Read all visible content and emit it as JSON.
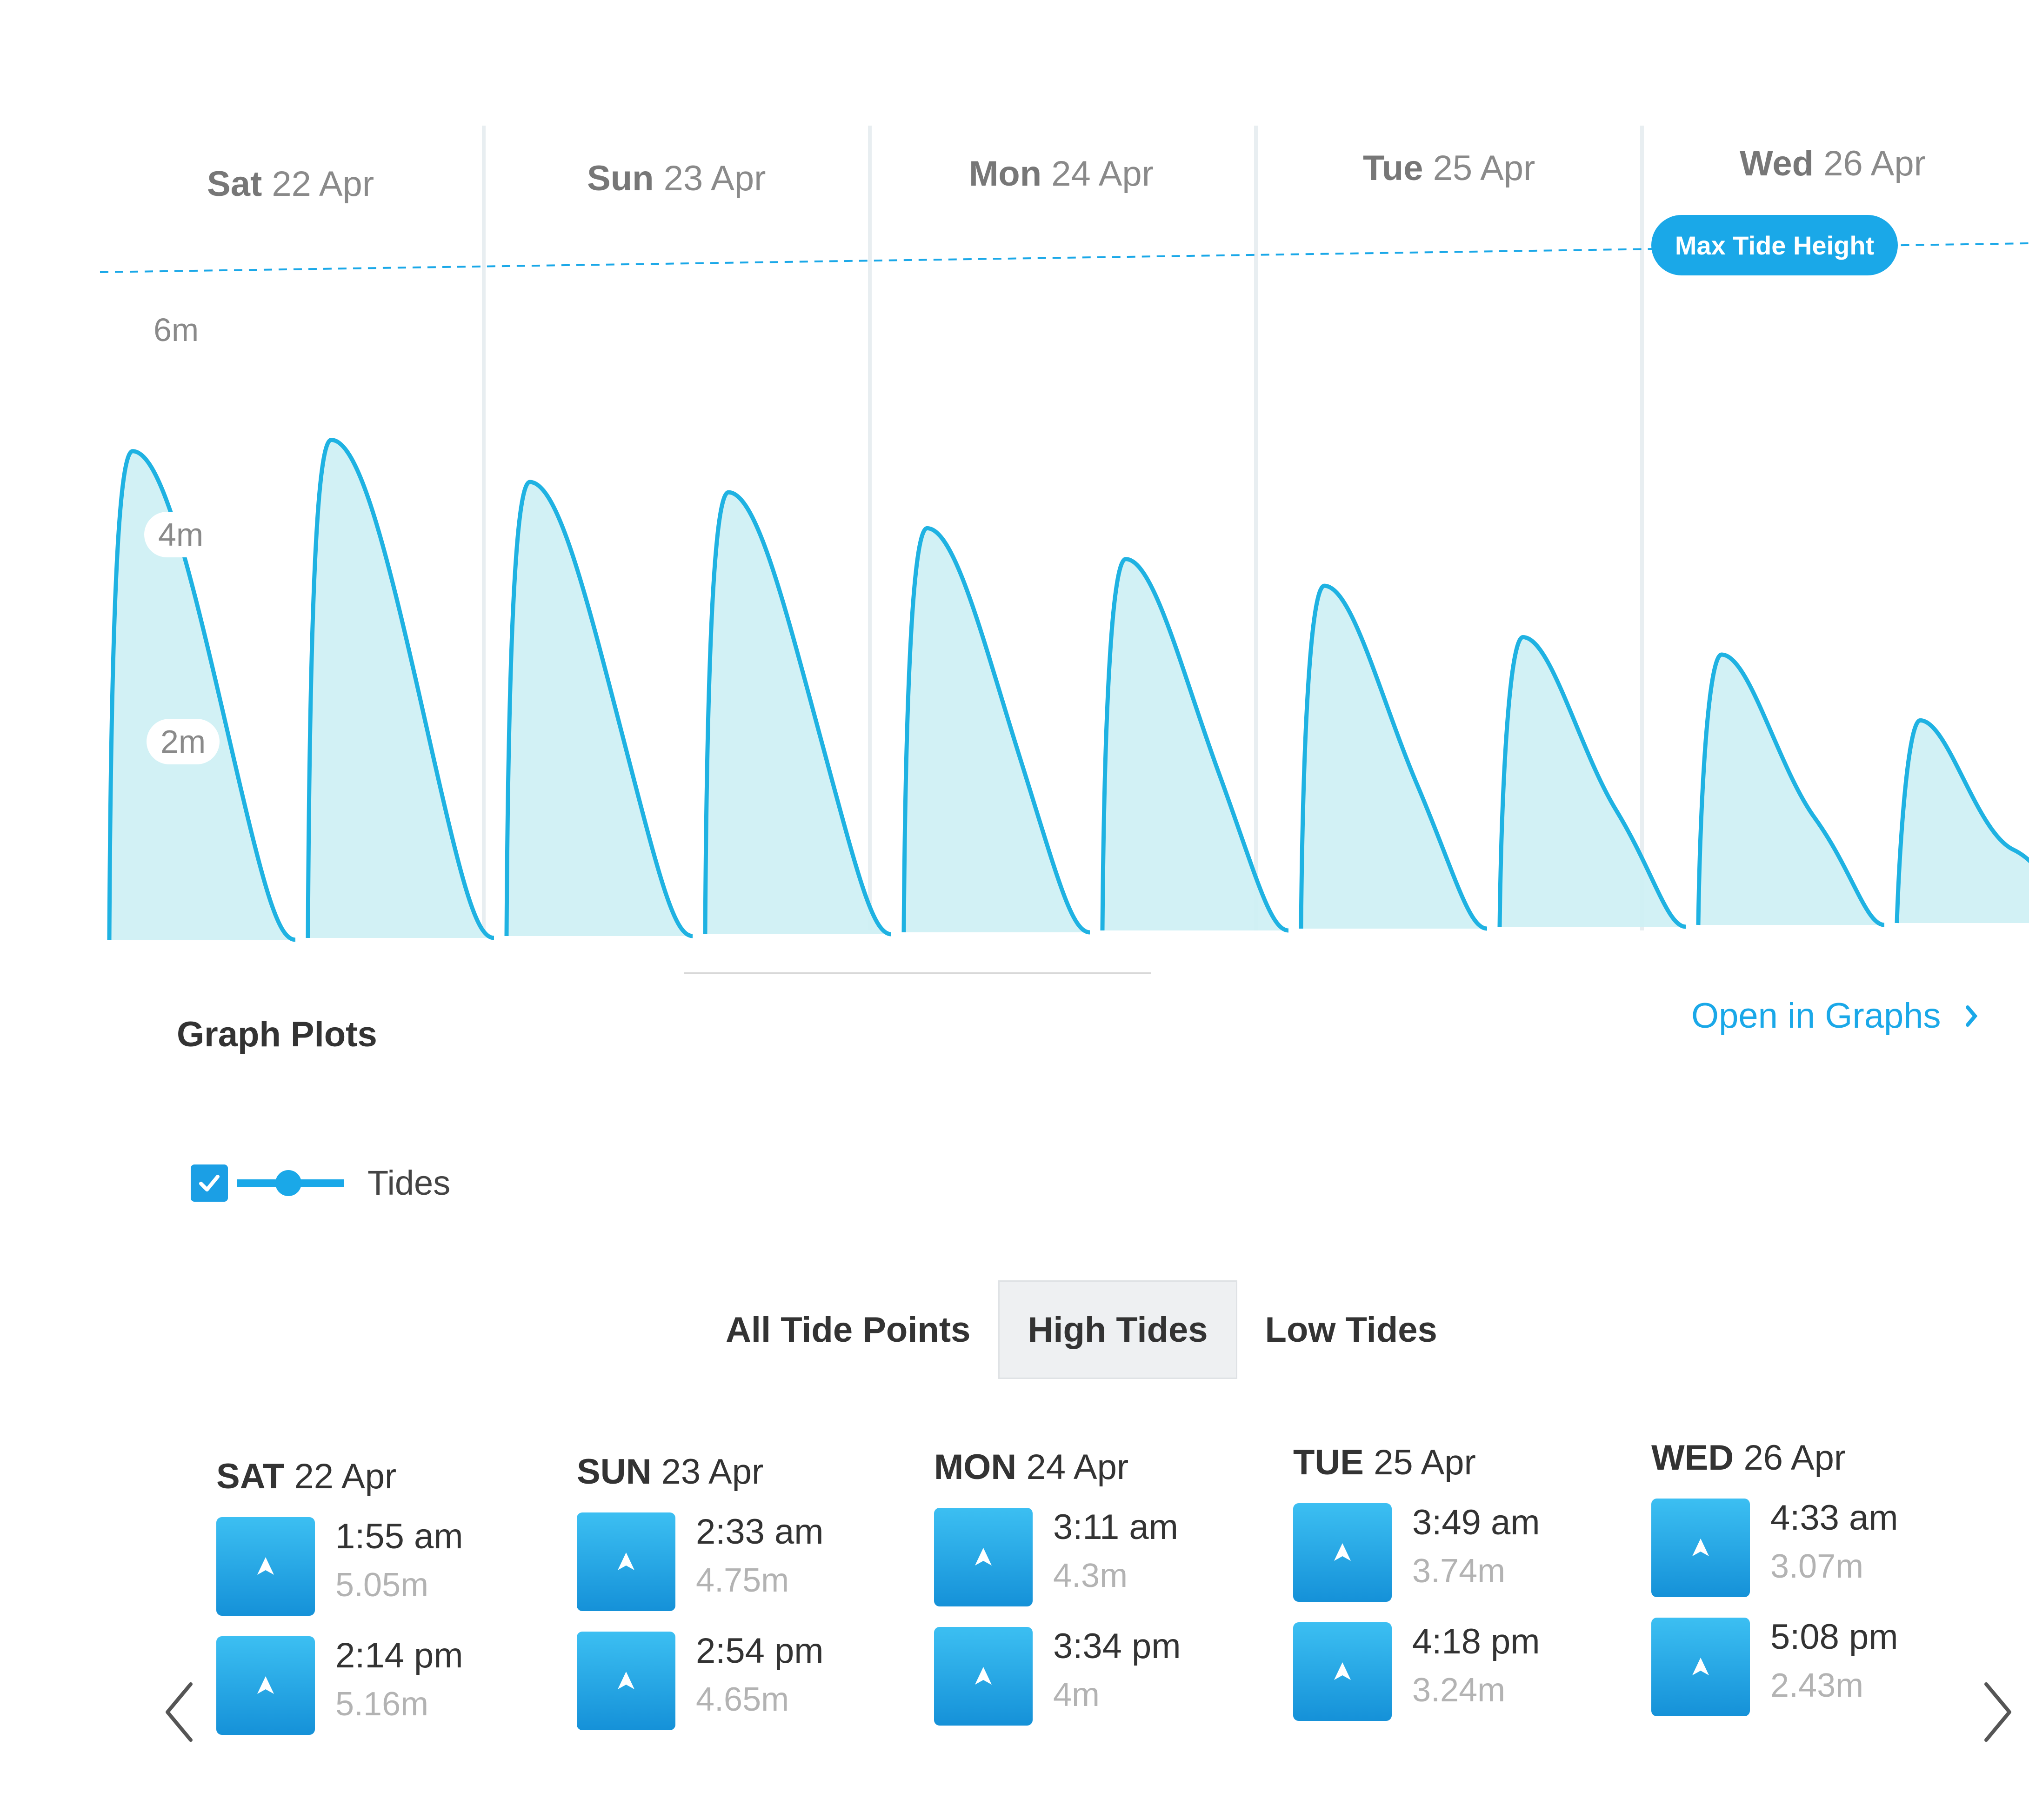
{
  "colors": {
    "accent": "#1aa8e8",
    "fill": "#cdeff4",
    "fill_dark": "#b2e6ee",
    "line": "#1fb2e2"
  },
  "chart": {
    "day_headers": [
      {
        "dow": "Sat",
        "date": "22 Apr"
      },
      {
        "dow": "Sun",
        "date": "23 Apr"
      },
      {
        "dow": "Mon",
        "date": "24 Apr"
      },
      {
        "dow": "Tue",
        "date": "25 Apr"
      },
      {
        "dow": "Wed",
        "date": "26 Apr"
      }
    ],
    "y_ticks": [
      "6m",
      "4m",
      "2m"
    ],
    "max_tide_label": "Max Tide Height"
  },
  "chart_data": {
    "type": "area",
    "ylabel": "",
    "y_ticks": [
      2,
      4,
      6
    ],
    "ylim": [
      0,
      6.8
    ],
    "max_tide_height": 6.6,
    "x_days": [
      "Sat 22 Apr",
      "Sun 23 Apr",
      "Mon 24 Apr",
      "Tue 25 Apr",
      "Wed 26 Apr"
    ],
    "series": [
      {
        "high_tide_heights": [
          5.05,
          5.16,
          4.75,
          4.65,
          4.3,
          4.0,
          3.74,
          3.24,
          3.07,
          2.43
        ]
      }
    ]
  },
  "section": {
    "title": "Graph Plots",
    "open_link": "Open in Graphs"
  },
  "legend": {
    "label": "Tides",
    "checked": true
  },
  "tabs": [
    {
      "label": "All Tide Points",
      "active": false
    },
    {
      "label": "High Tides",
      "active": true
    },
    {
      "label": "Low Tides",
      "active": false
    }
  ],
  "days": [
    {
      "dow": "SAT",
      "date": "22 Apr",
      "tides": [
        {
          "time": "1:55 am",
          "height": "5.05m"
        },
        {
          "time": "2:14 pm",
          "height": "5.16m"
        }
      ]
    },
    {
      "dow": "SUN",
      "date": "23 Apr",
      "tides": [
        {
          "time": "2:33 am",
          "height": "4.75m"
        },
        {
          "time": "2:54 pm",
          "height": "4.65m"
        }
      ]
    },
    {
      "dow": "MON",
      "date": "24 Apr",
      "tides": [
        {
          "time": "3:11 am",
          "height": "4.3m"
        },
        {
          "time": "3:34 pm",
          "height": "4m"
        }
      ]
    },
    {
      "dow": "TUE",
      "date": "25 Apr",
      "tides": [
        {
          "time": "3:49 am",
          "height": "3.74m"
        },
        {
          "time": "4:18 pm",
          "height": "3.24m"
        }
      ]
    },
    {
      "dow": "WED",
      "date": "26 Apr",
      "tides": [
        {
          "time": "4:33 am",
          "height": "3.07m"
        },
        {
          "time": "5:08 pm",
          "height": "2.43m"
        }
      ]
    }
  ],
  "nav": {
    "prev_icon": "chevron-left-icon",
    "next_icon": "chevron-right-icon"
  }
}
